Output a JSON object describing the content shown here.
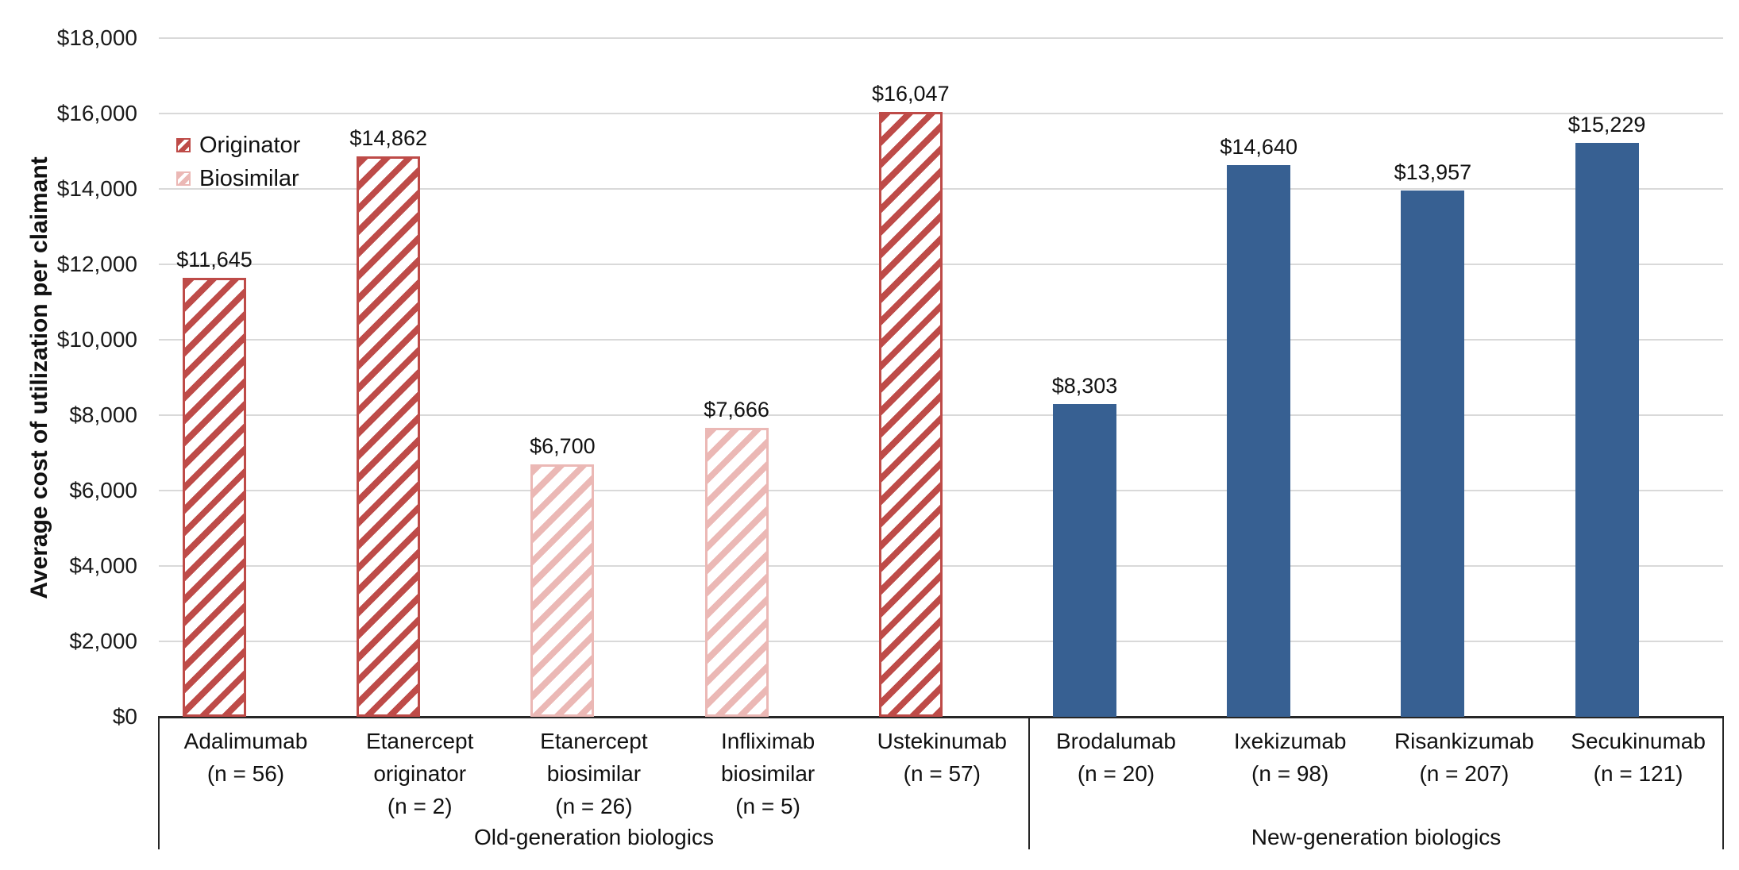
{
  "chart_data": {
    "type": "bar",
    "title": "",
    "xlabel": "",
    "ylabel": "Average cost of utilization per claimant",
    "ylim": [
      0,
      18000
    ],
    "grid": true,
    "legend_position": "top-left-inside",
    "ytick_values": [
      0,
      2000,
      4000,
      6000,
      8000,
      10000,
      12000,
      14000,
      16000,
      18000
    ],
    "ytick_labels": [
      "$0",
      "$2,000",
      "$4,000",
      "$6,000",
      "$8,000",
      "$10,000",
      "$12,000",
      "$14,000",
      "$16,000",
      "$18,000"
    ],
    "legend": [
      {
        "id": "originator",
        "label": "Originator"
      },
      {
        "id": "biosimilar",
        "label": "Biosimilar"
      }
    ],
    "groups": [
      {
        "label": "Old-generation biologics",
        "bar_count": 5
      },
      {
        "label": "New-generation biologics",
        "bar_count": 4
      }
    ],
    "bars": [
      {
        "label_lines": [
          "Adalimumab",
          "(n = 56)"
        ],
        "n": 56,
        "value": 11645,
        "value_label": "$11,645",
        "series": "originator",
        "group": 0
      },
      {
        "label_lines": [
          "Etanercept",
          "originator",
          "(n = 2)"
        ],
        "n": 2,
        "value": 14862,
        "value_label": "$14,862",
        "series": "originator",
        "group": 0
      },
      {
        "label_lines": [
          "Etanercept",
          "biosimilar",
          "(n = 26)"
        ],
        "n": 26,
        "value": 6700,
        "value_label": "$6,700",
        "series": "biosimilar",
        "group": 0
      },
      {
        "label_lines": [
          "Infliximab",
          "biosimilar",
          "(n = 5)"
        ],
        "n": 5,
        "value": 7666,
        "value_label": "$7,666",
        "series": "biosimilar",
        "group": 0
      },
      {
        "label_lines": [
          "Ustekinumab",
          "(n = 57)"
        ],
        "n": 57,
        "value": 16047,
        "value_label": "$16,047",
        "series": "originator",
        "group": 0
      },
      {
        "label_lines": [
          "Brodalumab",
          "(n = 20)"
        ],
        "n": 20,
        "value": 8303,
        "value_label": "$8,303",
        "series": "new_generation",
        "group": 1
      },
      {
        "label_lines": [
          "Ixekizumab",
          "(n = 98)"
        ],
        "n": 98,
        "value": 14640,
        "value_label": "$14,640",
        "series": "new_generation",
        "group": 1
      },
      {
        "label_lines": [
          "Risankizumab",
          "(n = 207)"
        ],
        "n": 207,
        "value": 13957,
        "value_label": "$13,957",
        "series": "new_generation",
        "group": 1
      },
      {
        "label_lines": [
          "Secukinumab",
          "(n = 121)"
        ],
        "n": 121,
        "value": 15229,
        "value_label": "$15,229",
        "series": "new_generation",
        "group": 1
      }
    ],
    "colors": {
      "originator": "#BE4B48",
      "biosimilar": "#EBB8B5",
      "new_generation": "#376092",
      "gridline": "#D9D9D9",
      "axis": "#262626",
      "hatch_background": "#FFFFFF"
    }
  }
}
